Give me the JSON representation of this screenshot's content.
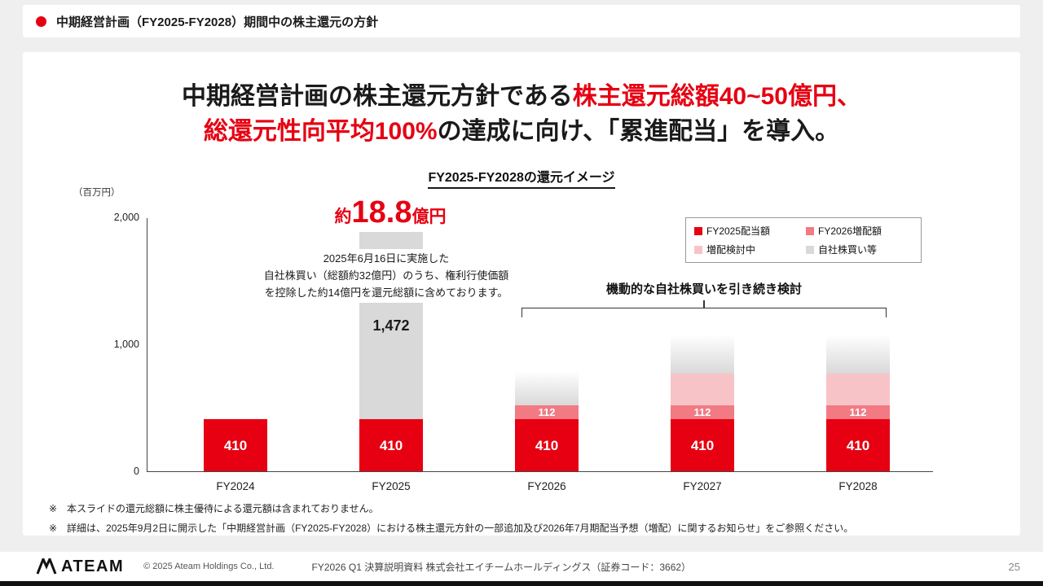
{
  "page": {
    "background": "#efefef",
    "accent_red": "#e60012"
  },
  "header": {
    "title": "中期経営計画（FY2025-FY2028）期間中の株主還元の方針"
  },
  "headline": {
    "line1_black": "中期経営計画の株主還元方針である",
    "line1_red": "株主還元総額40~50億円、",
    "line2_red": "総還元性向平均100%",
    "line2_black": "の達成に向け、「累進配当」を導入。"
  },
  "chart_data": {
    "type": "bar",
    "stacked": true,
    "title": "FY2025-FY2028の還元イメージ",
    "unit_label": "（百万円）",
    "ylim": [
      0,
      2000
    ],
    "gridlines": false,
    "legend_position": "top-right",
    "yticks": [
      {
        "label": "2,000",
        "value": 2000
      },
      {
        "label": "1,000",
        "value": 1000
      },
      {
        "label": "0",
        "value": 0
      }
    ],
    "categories": [
      "FY2024",
      "FY2025",
      "FY2026",
      "FY2027",
      "FY2028"
    ],
    "series": [
      {
        "name": "FY2025配当額",
        "color": "#e60012",
        "label_color": "#ffffff",
        "values": [
          410,
          410,
          410,
          410,
          410
        ]
      },
      {
        "name": "FY2026増配額",
        "color": "#f27a83",
        "label_color": "#ffffff",
        "values": [
          0,
          0,
          112,
          112,
          112
        ]
      },
      {
        "name": "増配検討中",
        "color": "#f8c3c7",
        "label_color": "#ffffff",
        "values": [
          0,
          0,
          0,
          250,
          250
        ],
        "estimated_values": true
      },
      {
        "name": "自社株買い等",
        "color": "#d9d9d9",
        "label_color": "#1a1a1a",
        "values": [
          0,
          1472,
          280,
          320,
          320
        ],
        "estimated_values": true
      }
    ],
    "bars": [
      {
        "category": "FY2024",
        "segments": [
          {
            "series": "FY2025配当額",
            "value": 410,
            "label": "410"
          }
        ]
      },
      {
        "category": "FY2025",
        "segments": [
          {
            "series": "FY2025配当額",
            "value": 410,
            "label": "410"
          },
          {
            "series": "自社株買い等",
            "value": 1472,
            "label": "1,472"
          }
        ]
      },
      {
        "category": "FY2026",
        "segments": [
          {
            "series": "FY2025配当額",
            "value": 410,
            "label": "410"
          },
          {
            "series": "FY2026増配額",
            "value": 112,
            "label": "112"
          },
          {
            "series": "自社株買い等",
            "value": 280,
            "label": "",
            "gradient": true
          }
        ]
      },
      {
        "category": "FY2027",
        "segments": [
          {
            "series": "FY2025配当額",
            "value": 410,
            "label": "410"
          },
          {
            "series": "FY2026増配額",
            "value": 112,
            "label": "112"
          },
          {
            "series": "増配検討中",
            "value": 250,
            "label": ""
          },
          {
            "series": "自社株買い等",
            "value": 320,
            "label": "",
            "gradient": true
          }
        ]
      },
      {
        "category": "FY2028",
        "segments": [
          {
            "series": "FY2025配当額",
            "value": 410,
            "label": "410"
          },
          {
            "series": "FY2026増配額",
            "value": 112,
            "label": "112"
          },
          {
            "series": "増配検討中",
            "value": 250,
            "label": ""
          },
          {
            "series": "自社株買い等",
            "value": 320,
            "label": "",
            "gradient": true
          }
        ]
      }
    ]
  },
  "annotations": {
    "fy2025_total": {
      "prefix": "約",
      "value": "18.8",
      "suffix": "億円"
    },
    "fy2025_note": [
      "2025年6月16日に実施した",
      "自社株買い（総額約32億円）のうち、権利行使価額",
      "を控除した約14億円を還元総額に含めております。"
    ],
    "buyback_bracket": "機動的な自社株買いを引き続き検討"
  },
  "footnotes": [
    "※　本スライドの還元総額に株主優待による還元額は含まれておりません。",
    "※　詳細は、2025年9月2日に開示した「中期経営計画（FY2025-FY2028）における株主還元方針の一部追加及び2026年7月期配当予想（増配）に関するお知らせ」をご参照ください。"
  ],
  "footer": {
    "logo_text": "ATEAM",
    "copyright": "© 2025 Ateam Holdings Co., Ltd.",
    "center": "FY2026 Q1 決算説明資料 株式会社エイチームホールディングス（証券コード：3662）",
    "page_number": "25"
  }
}
